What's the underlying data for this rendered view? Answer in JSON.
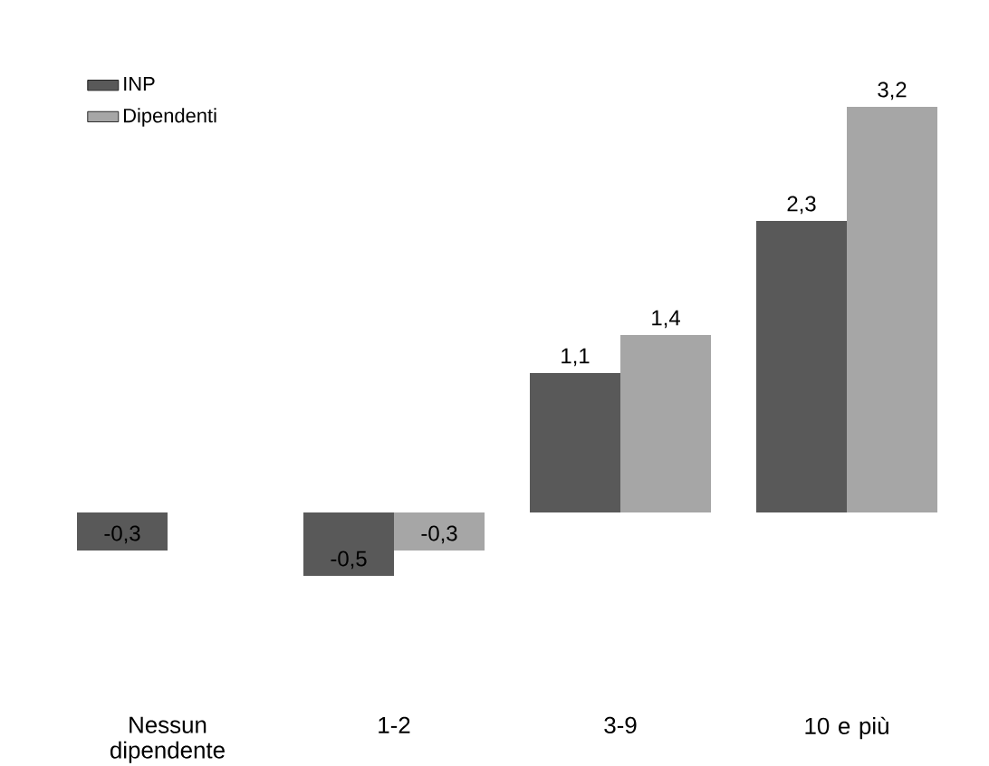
{
  "chart_data": {
    "type": "bar",
    "categories": [
      "Nessun dipendente",
      "1-2",
      "3-9",
      "10 e più"
    ],
    "series": [
      {
        "name": "INP",
        "color": "#595959",
        "values": [
          -0.3,
          -0.5,
          1.1,
          2.3
        ],
        "value_labels": [
          "-0,3",
          "-0,5",
          "1,1",
          "2,3"
        ]
      },
      {
        "name": "Dipendenti",
        "color": "#a6a6a6",
        "values": [
          null,
          -0.3,
          1.4,
          3.2
        ],
        "value_labels": [
          null,
          "-0,3",
          "1,4",
          "3,2"
        ]
      }
    ],
    "data_labels": true,
    "legend": "top left"
  }
}
